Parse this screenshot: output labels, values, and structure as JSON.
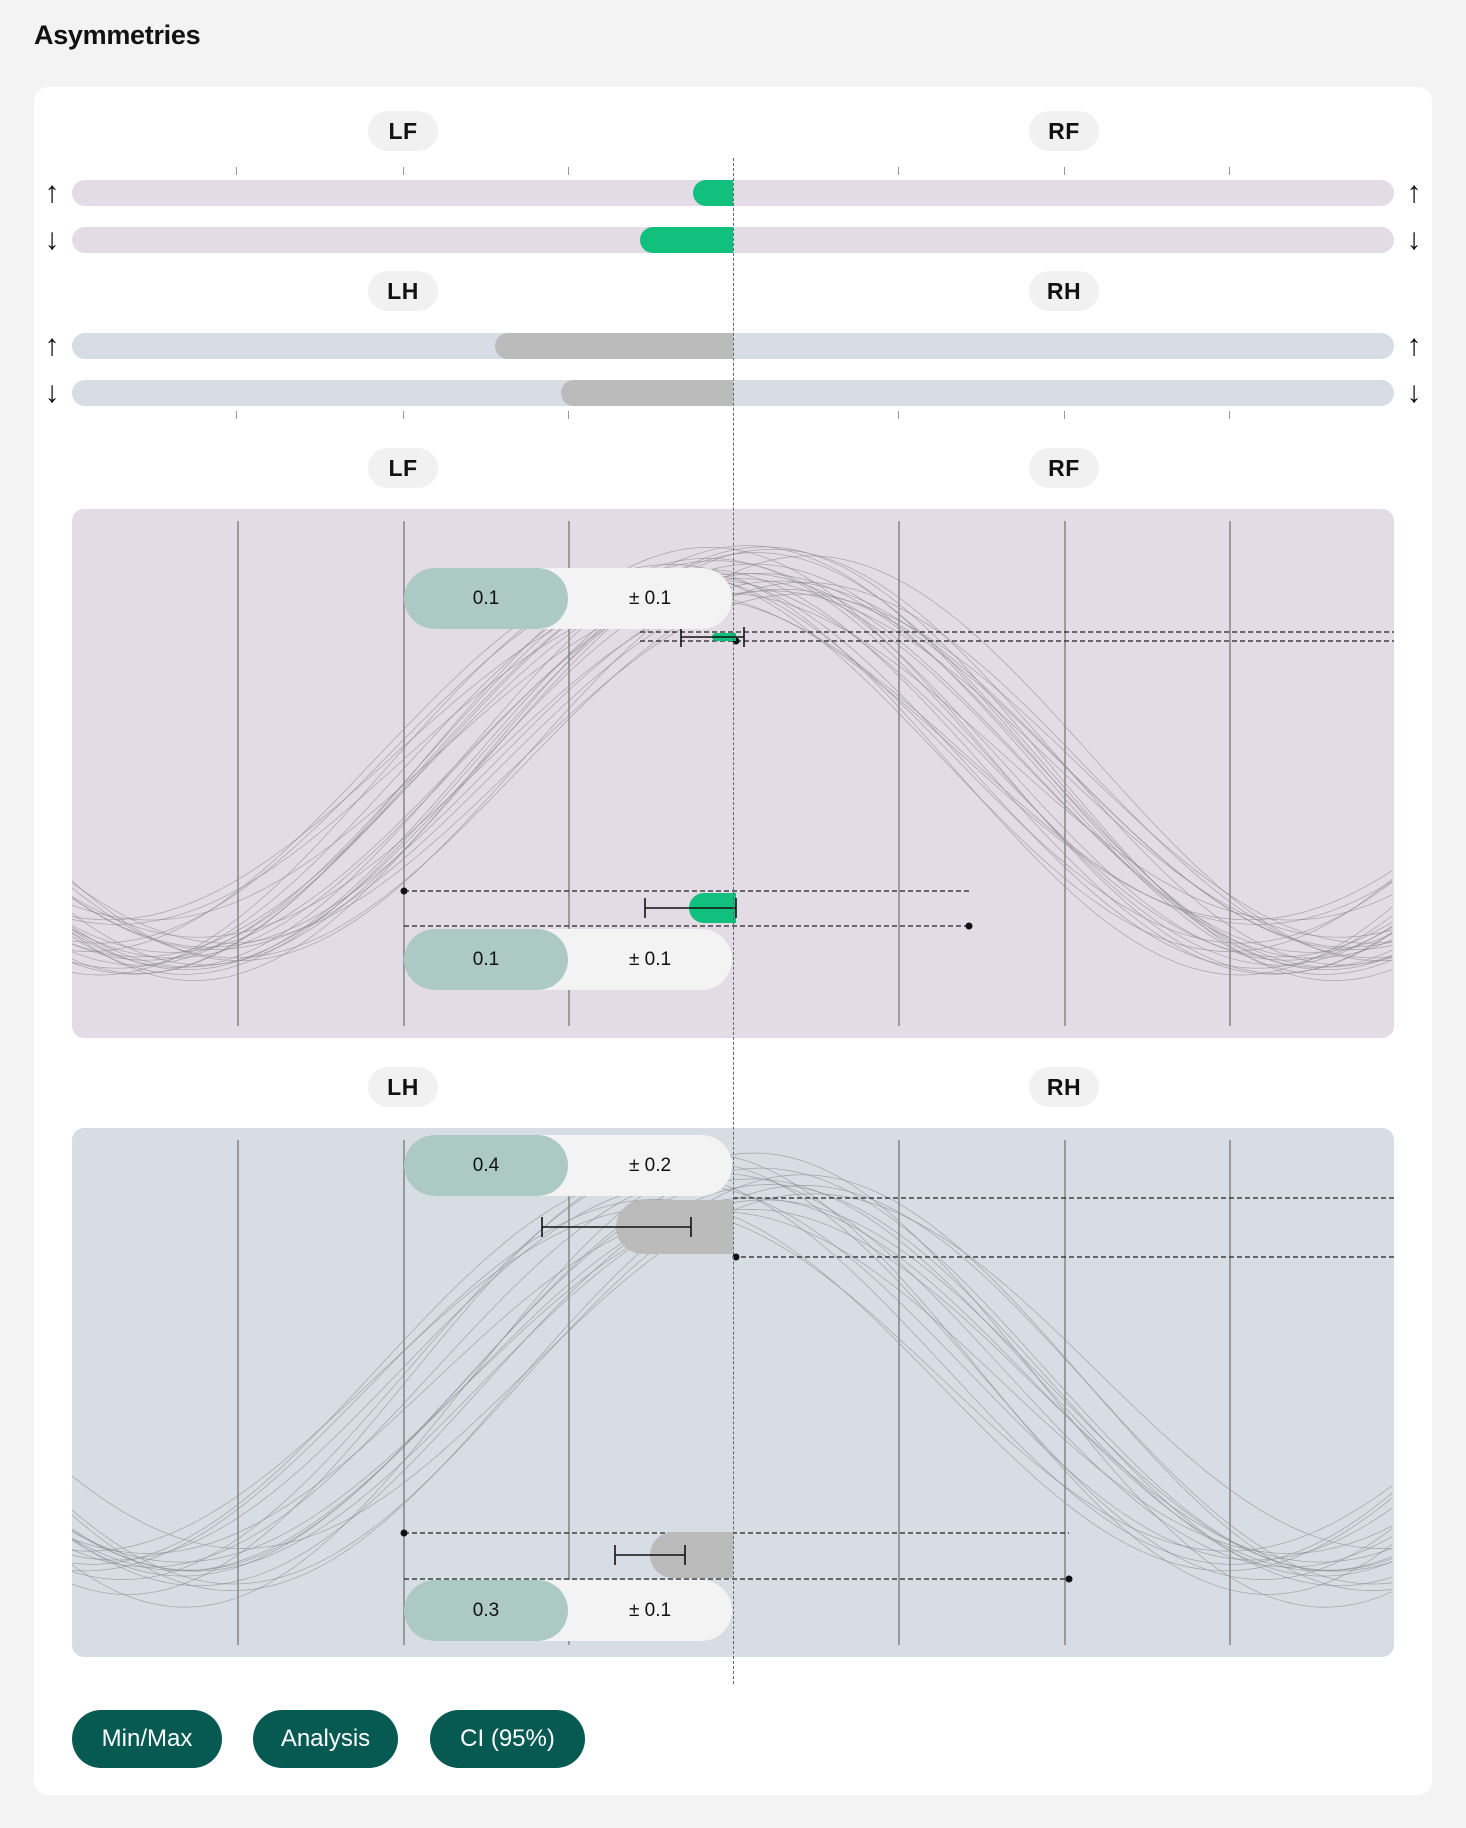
{
  "title": "Asymmetries",
  "labels": {
    "lf": "LF",
    "rf": "RF",
    "lh": "LH",
    "rh": "RH"
  },
  "arrows": {
    "up": "↑",
    "down": "↓"
  },
  "summary": {
    "front": {
      "up_fraction": 0.03,
      "down_fraction": 0.07,
      "color": "#10c07c"
    },
    "hind": {
      "up_fraction": 0.18,
      "down_fraction": 0.13,
      "color": "#bbbbbb"
    }
  },
  "panels": {
    "front": {
      "top_value": "0.1",
      "top_error": "± 0.1",
      "bottom_value": "0.1",
      "bottom_error": "± 0.1",
      "background": "#e3dbe6"
    },
    "hind": {
      "top_value": "0.4",
      "top_error": "± 0.2",
      "bottom_value": "0.3",
      "bottom_error": "± 0.1",
      "background": "#d6dde4"
    }
  },
  "controls": {
    "minmax": "Min/Max",
    "analysis": "Analysis",
    "ci": "CI (95%)"
  },
  "colors": {
    "accent_green": "#10c07c",
    "button_bg": "#065a52",
    "stat_value_bg": "#acc9c4"
  }
}
